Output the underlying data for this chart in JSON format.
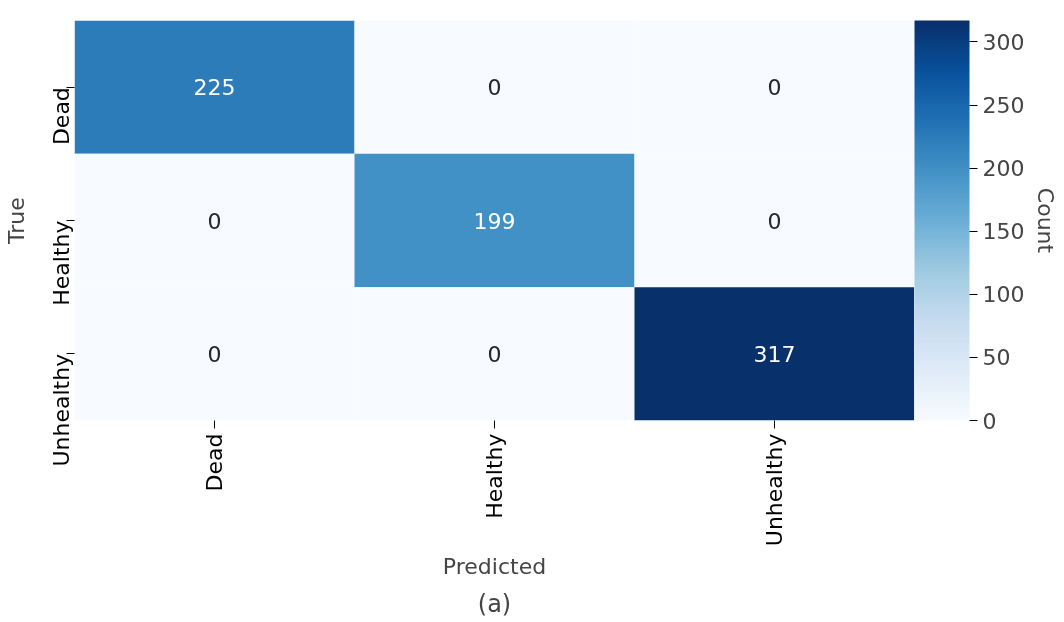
{
  "chart_data": {
    "type": "heatmap",
    "xlabel": "Predicted",
    "ylabel": "True",
    "clabel": "Count",
    "categories": [
      "Dead",
      "Healthy",
      "Unhealthy"
    ],
    "y_categories": [
      "Dead",
      "Healthy",
      "Unhealthy"
    ],
    "cells": [
      [
        225,
        0,
        0
      ],
      [
        0,
        199,
        0
      ],
      [
        0,
        0,
        317
      ]
    ],
    "clim": [
      0,
      317
    ],
    "cticks": [
      0,
      50,
      100,
      150,
      200,
      250,
      300
    ],
    "data_labels": true,
    "annotations": [
      "(a)"
    ]
  }
}
